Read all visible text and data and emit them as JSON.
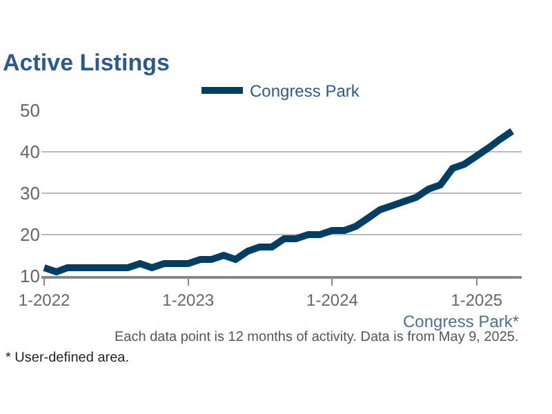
{
  "chart_data": {
    "type": "line",
    "title": "Active Listings",
    "x": [
      "2022-01",
      "2022-02",
      "2022-03",
      "2022-04",
      "2022-05",
      "2022-06",
      "2022-07",
      "2022-08",
      "2022-09",
      "2022-10",
      "2022-11",
      "2022-12",
      "2023-01",
      "2023-02",
      "2023-03",
      "2023-04",
      "2023-05",
      "2023-06",
      "2023-07",
      "2023-08",
      "2023-09",
      "2023-10",
      "2023-11",
      "2023-12",
      "2024-01",
      "2024-02",
      "2024-03",
      "2024-04",
      "2024-05",
      "2024-06",
      "2024-07",
      "2024-08",
      "2024-09",
      "2024-10",
      "2024-11",
      "2024-12",
      "2025-01",
      "2025-02",
      "2025-03",
      "2025-04"
    ],
    "series": [
      {
        "name": "Congress Park",
        "color": "#003f63",
        "values": [
          12,
          11,
          12,
          12,
          12,
          12,
          12,
          12,
          13,
          12,
          13,
          13,
          13,
          14,
          14,
          15,
          14,
          16,
          17,
          17,
          19,
          19,
          20,
          20,
          21,
          21,
          22,
          24,
          26,
          27,
          28,
          29,
          31,
          32,
          36,
          37,
          39,
          41,
          43,
          45
        ]
      }
    ],
    "xlim": [
      "2021-12-25",
      "2025-04-25"
    ],
    "xticks": [
      {
        "value": "2022-01-01",
        "label": "1-2022"
      },
      {
        "value": "2023-01-01",
        "label": "1-2023"
      },
      {
        "value": "2024-01-01",
        "label": "1-2024"
      },
      {
        "value": "2025-01-01",
        "label": "1-2025"
      }
    ],
    "ylim": [
      10,
      50
    ],
    "yticks": [
      10,
      20,
      30,
      40,
      50
    ],
    "grid": "y",
    "legend": "top",
    "marker": "none",
    "line_style": "solid",
    "annotations": [
      "Congress Park*",
      "Each data point is 12 months of activity. Data is from May 9, 2025.",
      "* User-defined area."
    ]
  }
}
